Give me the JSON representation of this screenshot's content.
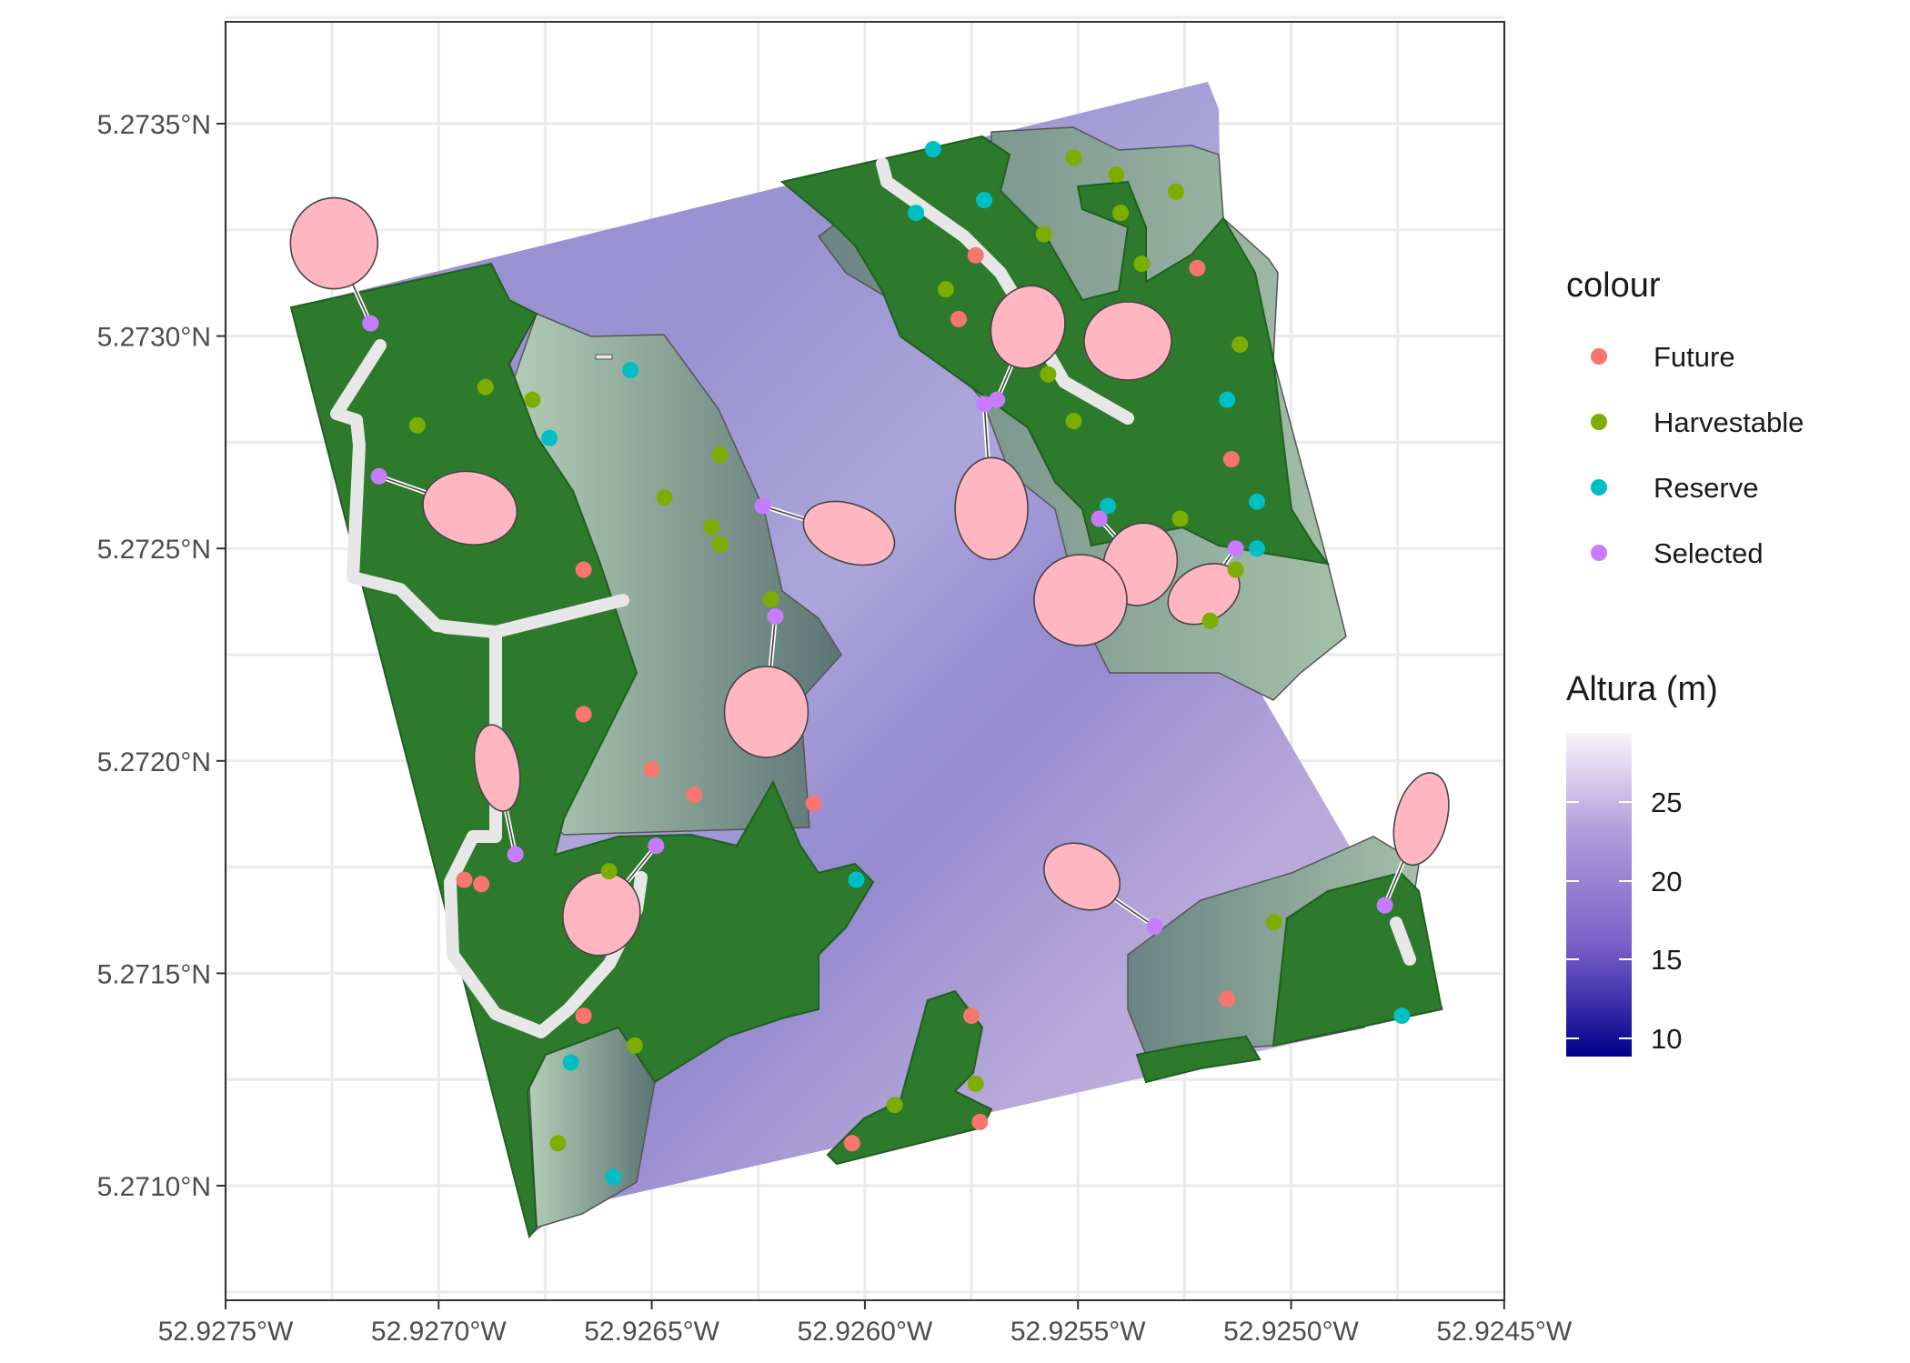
{
  "axes": {
    "x_labels": [
      "52.9275°W",
      "52.9270°W",
      "52.9265°W",
      "52.9260°W",
      "52.9255°W",
      "52.9250°W",
      "52.9245°W"
    ],
    "y_labels": [
      "5.2735°N",
      "5.2730°N",
      "5.2725°N",
      "5.2720°N",
      "5.2715°N",
      "5.2710°N"
    ]
  },
  "legend_colour": {
    "title": "colour",
    "items": [
      {
        "label": "Future",
        "color": "#F8766D"
      },
      {
        "label": "Harvestable",
        "color": "#7CAE00"
      },
      {
        "label": "Reserve",
        "color": "#00BFC4"
      },
      {
        "label": "Selected",
        "color": "#C77CFF"
      }
    ]
  },
  "legend_height": {
    "title": "Altura (m)",
    "ticks": [
      "25",
      "20",
      "15",
      "10"
    ],
    "gradient": [
      "#00008B",
      "#7B61C9",
      "#B49DDC",
      "#F7F5FB"
    ]
  },
  "colors": {
    "forest": "#2d7a2d",
    "hillshade_light": "#a8c4ae",
    "hillshade_dark": "#5e7777",
    "road": "#e7e7e7",
    "crown": "#ffb6c1",
    "panel_border": "#333333"
  },
  "chart_data": {
    "type": "scatter",
    "crs": "lon/lat degrees",
    "xlim": [
      -52.9275,
      -52.9245
    ],
    "ylim": [
      5.27075,
      5.27372
    ],
    "points": [
      {
        "category": "Future",
        "lon": -52.92522,
        "lat": 5.27316
      },
      {
        "category": "Future",
        "lon": -52.92574,
        "lat": 5.27319
      },
      {
        "category": "Future",
        "lon": -52.92578,
        "lat": 5.27304
      },
      {
        "category": "Future",
        "lon": -52.92514,
        "lat": 5.27271
      },
      {
        "category": "Future",
        "lon": -52.92666,
        "lat": 5.27245
      },
      {
        "category": "Future",
        "lon": -52.92666,
        "lat": 5.27211
      },
      {
        "category": "Future",
        "lon": -52.9265,
        "lat": 5.27198
      },
      {
        "category": "Future",
        "lon": -52.9264,
        "lat": 5.27192
      },
      {
        "category": "Future",
        "lon": -52.92612,
        "lat": 5.2719
      },
      {
        "category": "Future",
        "lon": -52.92694,
        "lat": 5.27172
      },
      {
        "category": "Future",
        "lon": -52.9269,
        "lat": 5.27171
      },
      {
        "category": "Future",
        "lon": -52.92666,
        "lat": 5.2714
      },
      {
        "category": "Future",
        "lon": -52.92575,
        "lat": 5.2714
      },
      {
        "category": "Future",
        "lon": -52.92515,
        "lat": 5.27144
      },
      {
        "category": "Future",
        "lon": -52.92603,
        "lat": 5.2711
      },
      {
        "category": "Future",
        "lon": -52.92573,
        "lat": 5.27115
      },
      {
        "category": "Harvestable",
        "lon": -52.92551,
        "lat": 5.27342
      },
      {
        "category": "Harvestable",
        "lon": -52.92541,
        "lat": 5.27338
      },
      {
        "category": "Harvestable",
        "lon": -52.92527,
        "lat": 5.27334
      },
      {
        "category": "Harvestable",
        "lon": -52.9254,
        "lat": 5.27329
      },
      {
        "category": "Harvestable",
        "lon": -52.92558,
        "lat": 5.27324
      },
      {
        "category": "Harvestable",
        "lon": -52.92535,
        "lat": 5.27317
      },
      {
        "category": "Harvestable",
        "lon": -52.92581,
        "lat": 5.27311
      },
      {
        "category": "Harvestable",
        "lon": -52.92512,
        "lat": 5.27298
      },
      {
        "category": "Harvestable",
        "lon": -52.92557,
        "lat": 5.27291
      },
      {
        "category": "Harvestable",
        "lon": -52.92551,
        "lat": 5.2728
      },
      {
        "category": "Harvestable",
        "lon": -52.92689,
        "lat": 5.27288
      },
      {
        "category": "Harvestable",
        "lon": -52.92678,
        "lat": 5.27285
      },
      {
        "category": "Harvestable",
        "lon": -52.92705,
        "lat": 5.27279
      },
      {
        "category": "Harvestable",
        "lon": -52.92634,
        "lat": 5.27272
      },
      {
        "category": "Harvestable",
        "lon": -52.92647,
        "lat": 5.27262
      },
      {
        "category": "Harvestable",
        "lon": -52.92636,
        "lat": 5.27255
      },
      {
        "category": "Harvestable",
        "lon": -52.92634,
        "lat": 5.27251
      },
      {
        "category": "Harvestable",
        "lon": -52.92526,
        "lat": 5.27257
      },
      {
        "category": "Harvestable",
        "lon": -52.92513,
        "lat": 5.27245
      },
      {
        "category": "Harvestable",
        "lon": -52.92519,
        "lat": 5.27233
      },
      {
        "category": "Harvestable",
        "lon": -52.92622,
        "lat": 5.27238
      },
      {
        "category": "Harvestable",
        "lon": -52.9266,
        "lat": 5.27174
      },
      {
        "category": "Harvestable",
        "lon": -52.92504,
        "lat": 5.27162
      },
      {
        "category": "Harvestable",
        "lon": -52.92654,
        "lat": 5.27133
      },
      {
        "category": "Harvestable",
        "lon": -52.92574,
        "lat": 5.27124
      },
      {
        "category": "Harvestable",
        "lon": -52.92593,
        "lat": 5.27119
      },
      {
        "category": "Harvestable",
        "lon": -52.92672,
        "lat": 5.2711
      },
      {
        "category": "Reserve",
        "lon": -52.92584,
        "lat": 5.27344
      },
      {
        "category": "Reserve",
        "lon": -52.92572,
        "lat": 5.27332
      },
      {
        "category": "Reserve",
        "lon": -52.92588,
        "lat": 5.27329
      },
      {
        "category": "Reserve",
        "lon": -52.92655,
        "lat": 5.27292
      },
      {
        "category": "Reserve",
        "lon": -52.92674,
        "lat": 5.27276
      },
      {
        "category": "Reserve",
        "lon": -52.92515,
        "lat": 5.27285
      },
      {
        "category": "Reserve",
        "lon": -52.92543,
        "lat": 5.2726
      },
      {
        "category": "Reserve",
        "lon": -52.92508,
        "lat": 5.27261
      },
      {
        "category": "Reserve",
        "lon": -52.92508,
        "lat": 5.2725
      },
      {
        "category": "Reserve",
        "lon": -52.92602,
        "lat": 5.27172
      },
      {
        "category": "Reserve",
        "lon": -52.92669,
        "lat": 5.27129
      },
      {
        "category": "Reserve",
        "lon": -52.92659,
        "lat": 5.27102
      },
      {
        "category": "Reserve",
        "lon": -52.92474,
        "lat": 5.2714
      },
      {
        "category": "Selected",
        "lon": -52.92716,
        "lat": 5.27303
      },
      {
        "category": "Selected",
        "lon": -52.92714,
        "lat": 5.27267
      },
      {
        "category": "Selected",
        "lon": -52.92569,
        "lat": 5.27285
      },
      {
        "category": "Selected",
        "lon": -52.92572,
        "lat": 5.27284
      },
      {
        "category": "Selected",
        "lon": -52.92624,
        "lat": 5.2726
      },
      {
        "category": "Selected",
        "lon": -52.92621,
        "lat": 5.27234
      },
      {
        "category": "Selected",
        "lon": -52.92545,
        "lat": 5.27257
      },
      {
        "category": "Selected",
        "lon": -52.92513,
        "lat": 5.2725
      },
      {
        "category": "Selected",
        "lon": -52.92682,
        "lat": 5.27178
      },
      {
        "category": "Selected",
        "lon": -52.92649,
        "lat": 5.2718
      },
      {
        "category": "Selected",
        "lon": -52.92532,
        "lat": 5.27161
      },
      {
        "category": "Selected",
        "lon": -52.92478,
        "lat": 5.27166
      }
    ]
  }
}
